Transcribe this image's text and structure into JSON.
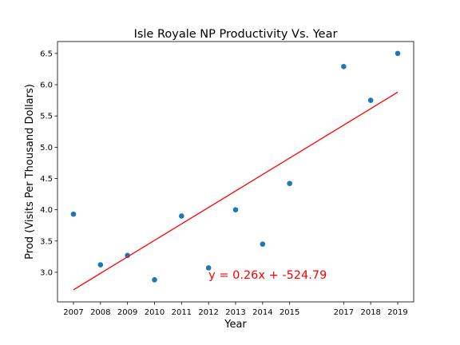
{
  "chart_data": {
    "type": "scatter",
    "title": "Isle Royale NP Productivity Vs. Year",
    "xlabel": "Year",
    "ylabel": "Prod (Visits Per Thousand Dollars)",
    "x": [
      2007,
      2008,
      2009,
      2010,
      2011,
      2012,
      2013,
      2014,
      2015,
      2017,
      2018,
      2019
    ],
    "values": [
      3.93,
      3.12,
      3.27,
      2.88,
      3.9,
      3.07,
      4.0,
      3.45,
      4.42,
      6.29,
      5.75,
      6.5
    ],
    "color": "#1f77b4",
    "trendline": {
      "x": [
        2007,
        2019
      ],
      "values": [
        2.72,
        5.88
      ],
      "color": "#ff0000"
    },
    "annotation": {
      "text": "y = 0.26x + -524.79",
      "x": 2012,
      "y": 2.9,
      "color": "#ff0000"
    },
    "xlim": [
      2006.41,
      2019.59
    ],
    "ylim": [
      2.527,
      6.69
    ],
    "xticks": [
      2007,
      2008,
      2009,
      2010,
      2011,
      2012,
      2013,
      2014,
      2015,
      2017,
      2018,
      2019
    ],
    "yticks": [
      {
        "value": 3,
        "label": "3.0"
      },
      3.5,
      {
        "value": 4,
        "label": "4.0"
      },
      4.5,
      {
        "value": 5,
        "label": "5.0"
      },
      5.5,
      {
        "value": 6,
        "label": "6.0"
      },
      6.5
    ],
    "grid": false
  }
}
